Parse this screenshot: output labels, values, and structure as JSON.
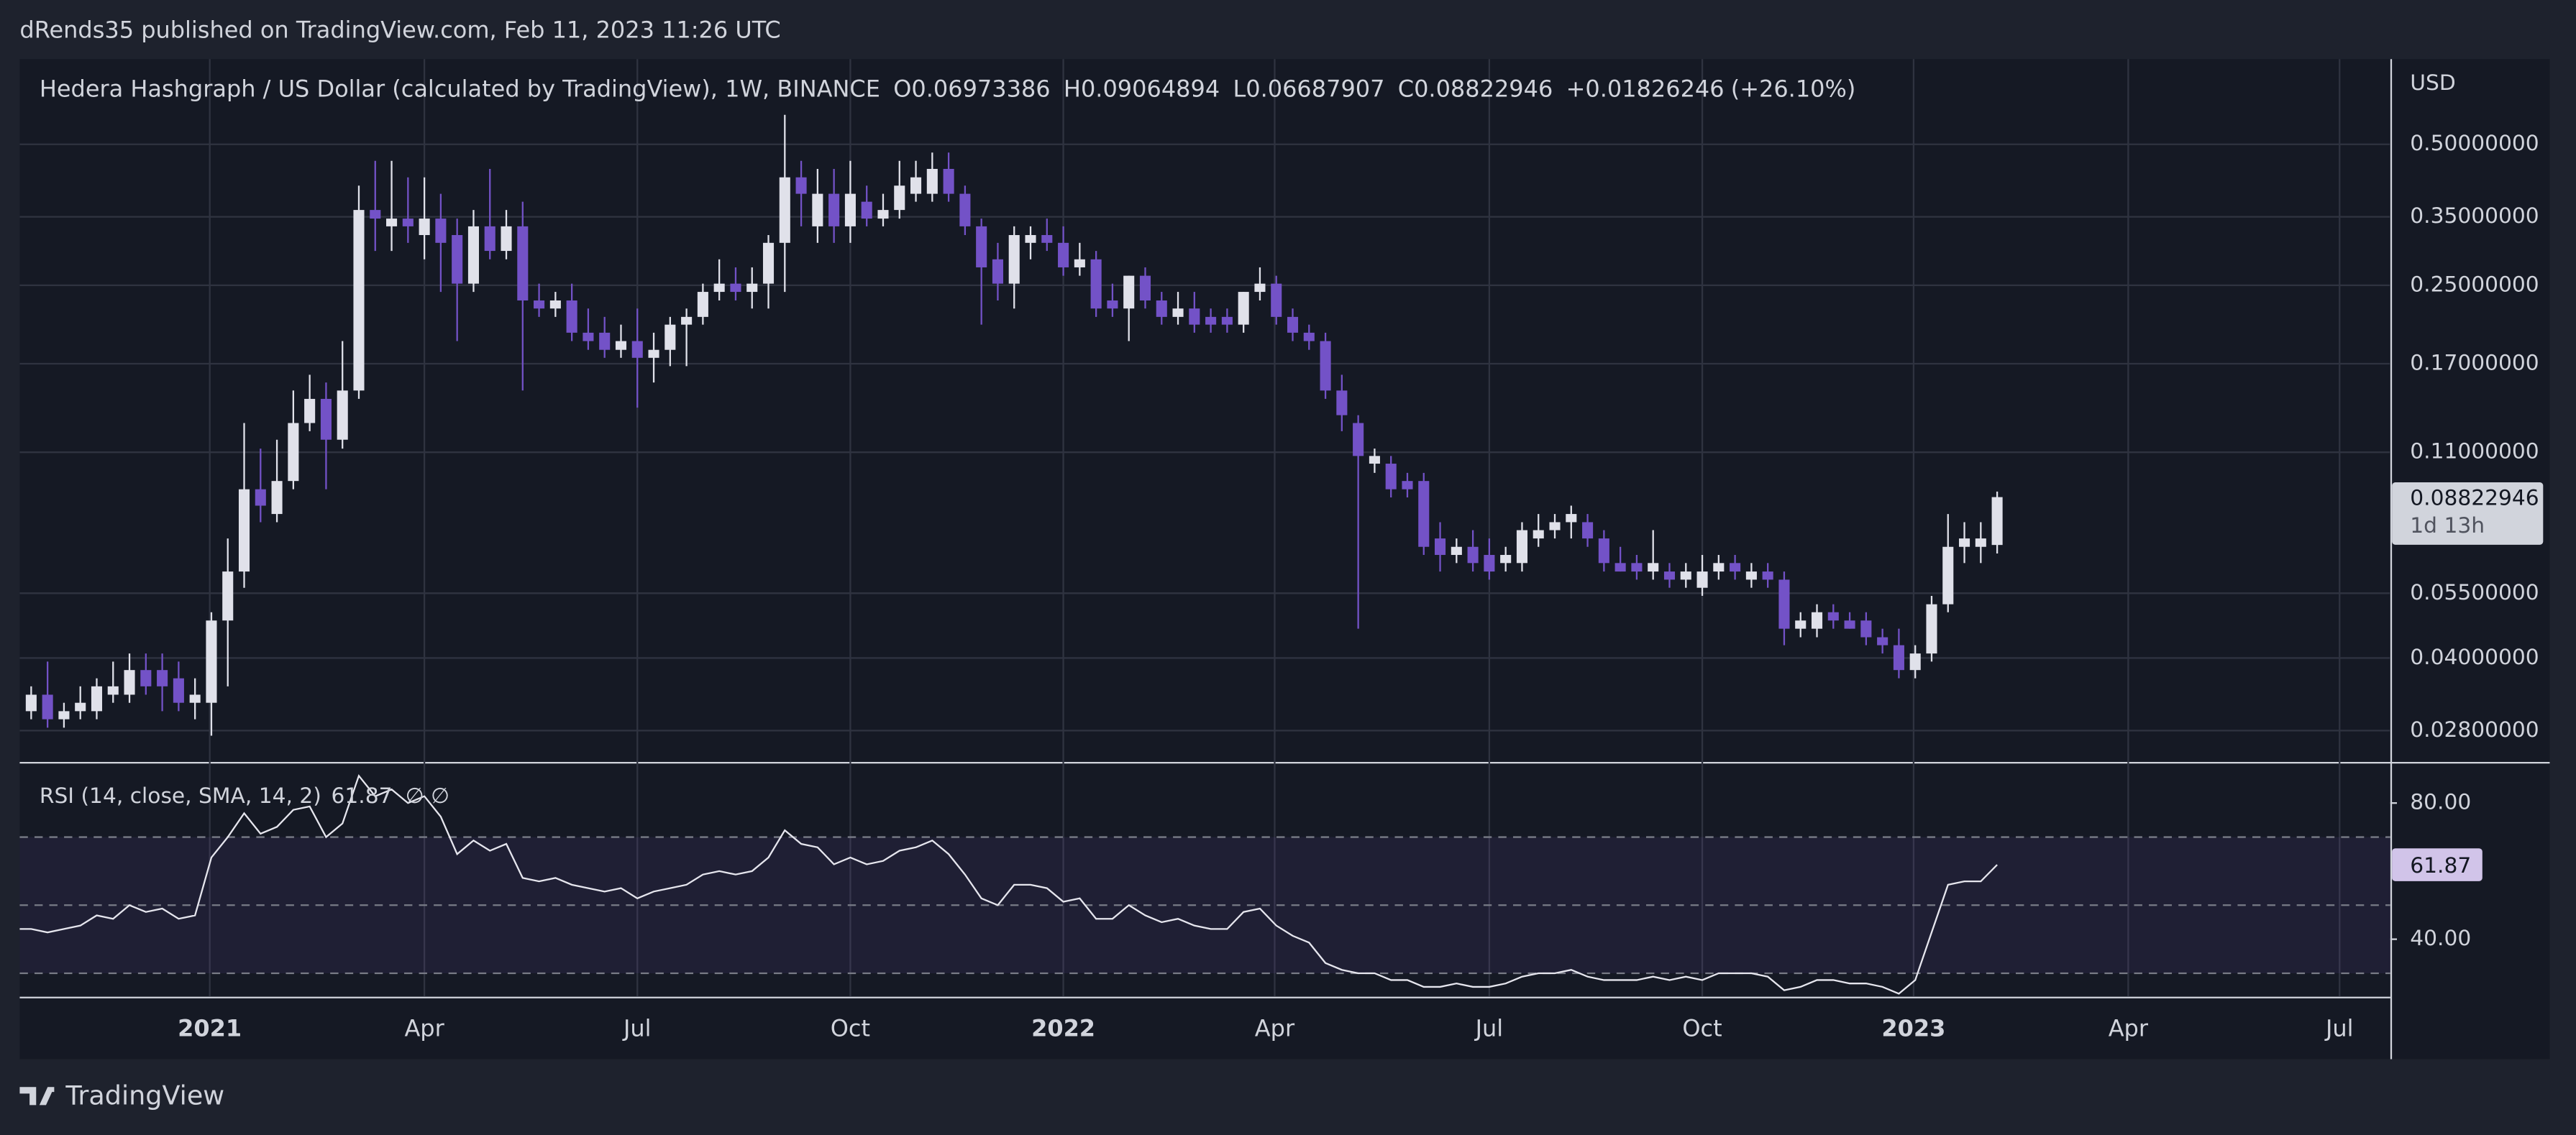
{
  "header": {
    "published": "dRends35 published on TradingView.com, Feb 11, 2023 11:26 UTC",
    "brand": "TradingView"
  },
  "chart_data": [
    {
      "type": "candlestick",
      "title": "Hedera Hashgraph / US Dollar (calculated by TradingView), 1W, BINANCE",
      "ohlc_labels": [
        "O",
        "H",
        "L",
        "C"
      ],
      "change": "+0.01826246",
      "change_pct": "(+26.10%)",
      "currency": "USD",
      "countdown": "1d 13h",
      "up_color": "#e0e1ea",
      "down_color": "#7352c7",
      "log_scale": true,
      "grid": true,
      "ylim": [
        0.024,
        0.76
      ],
      "yticks": [
        {
          "value": 0.5,
          "label": "0.50000000"
        },
        {
          "value": 0.35,
          "label": "0.35000000"
        },
        {
          "value": 0.25,
          "label": "0.25000000"
        },
        {
          "value": 0.17,
          "label": "0.17000000"
        },
        {
          "value": 0.11,
          "label": "0.11000000"
        },
        {
          "value": 0.055,
          "label": "0.05500000"
        },
        {
          "value": 0.04,
          "label": "0.04000000"
        },
        {
          "value": 0.028,
          "label": "0.02800000"
        }
      ],
      "xlim": [
        -0.7,
        144.0
      ],
      "xticks": [
        {
          "value": 10.9,
          "label": "2021"
        },
        {
          "value": 24.0,
          "label": "Apr"
        },
        {
          "value": 37.0,
          "label": "Jul"
        },
        {
          "value": 50.0,
          "label": "Oct"
        },
        {
          "value": 63.0,
          "label": "2022"
        },
        {
          "value": 75.9,
          "label": "Apr"
        },
        {
          "value": 89.0,
          "label": "Jul"
        },
        {
          "value": 102.0,
          "label": "Oct"
        },
        {
          "value": 114.9,
          "label": "2023"
        },
        {
          "value": 128.0,
          "label": "Apr"
        },
        {
          "value": 140.9,
          "label": "Jul"
        }
      ],
      "candles": [
        {
          "open": 0.0308,
          "high": 0.0348,
          "low": 0.0296,
          "close": 0.0334
        },
        {
          "open": 0.0334,
          "high": 0.0393,
          "low": 0.0284,
          "close": 0.0296
        },
        {
          "open": 0.0296,
          "high": 0.0321,
          "low": 0.0284,
          "close": 0.0308
        },
        {
          "open": 0.0308,
          "high": 0.0348,
          "low": 0.0296,
          "close": 0.0321
        },
        {
          "open": 0.0308,
          "high": 0.0362,
          "low": 0.0296,
          "close": 0.0348
        },
        {
          "open": 0.0334,
          "high": 0.0393,
          "low": 0.0321,
          "close": 0.0348
        },
        {
          "open": 0.0334,
          "high": 0.0409,
          "low": 0.0321,
          "close": 0.0377
        },
        {
          "open": 0.0377,
          "high": 0.0409,
          "low": 0.0334,
          "close": 0.0348
        },
        {
          "open": 0.0377,
          "high": 0.0409,
          "low": 0.0308,
          "close": 0.0348
        },
        {
          "open": 0.0362,
          "high": 0.0393,
          "low": 0.0308,
          "close": 0.0321
        },
        {
          "open": 0.0321,
          "high": 0.0362,
          "low": 0.0296,
          "close": 0.0334
        },
        {
          "open": 0.0321,
          "high": 0.0501,
          "low": 0.0273,
          "close": 0.0481
        },
        {
          "open": 0.0481,
          "high": 0.072,
          "low": 0.0348,
          "close": 0.0612
        },
        {
          "open": 0.0612,
          "high": 0.127,
          "low": 0.0565,
          "close": 0.0917
        },
        {
          "open": 0.0917,
          "high": 0.112,
          "low": 0.078,
          "close": 0.0846
        },
        {
          "open": 0.0812,
          "high": 0.117,
          "low": 0.078,
          "close": 0.0955
        },
        {
          "open": 0.0955,
          "high": 0.149,
          "low": 0.0917,
          "close": 0.127
        },
        {
          "open": 0.127,
          "high": 0.161,
          "low": 0.122,
          "close": 0.143
        },
        {
          "open": 0.143,
          "high": 0.155,
          "low": 0.0917,
          "close": 0.117
        },
        {
          "open": 0.117,
          "high": 0.19,
          "low": 0.112,
          "close": 0.149
        },
        {
          "open": 0.149,
          "high": 0.408,
          "low": 0.143,
          "close": 0.362
        },
        {
          "open": 0.362,
          "high": 0.461,
          "low": 0.296,
          "close": 0.347
        },
        {
          "open": 0.334,
          "high": 0.461,
          "low": 0.296,
          "close": 0.347
        },
        {
          "open": 0.347,
          "high": 0.425,
          "low": 0.308,
          "close": 0.334
        },
        {
          "open": 0.32,
          "high": 0.425,
          "low": 0.284,
          "close": 0.347
        },
        {
          "open": 0.347,
          "high": 0.392,
          "low": 0.242,
          "close": 0.308
        },
        {
          "open": 0.32,
          "high": 0.347,
          "low": 0.19,
          "close": 0.252
        },
        {
          "open": 0.252,
          "high": 0.362,
          "low": 0.242,
          "close": 0.334
        },
        {
          "open": 0.334,
          "high": 0.443,
          "low": 0.284,
          "close": 0.296
        },
        {
          "open": 0.296,
          "high": 0.362,
          "low": 0.284,
          "close": 0.334
        },
        {
          "open": 0.334,
          "high": 0.377,
          "low": 0.149,
          "close": 0.232
        },
        {
          "open": 0.232,
          "high": 0.252,
          "low": 0.214,
          "close": 0.223
        },
        {
          "open": 0.223,
          "high": 0.242,
          "low": 0.214,
          "close": 0.232
        },
        {
          "open": 0.232,
          "high": 0.252,
          "low": 0.19,
          "close": 0.198
        },
        {
          "open": 0.198,
          "high": 0.223,
          "low": 0.182,
          "close": 0.19
        },
        {
          "open": 0.198,
          "high": 0.214,
          "low": 0.175,
          "close": 0.182
        },
        {
          "open": 0.182,
          "high": 0.206,
          "low": 0.175,
          "close": 0.19
        },
        {
          "open": 0.19,
          "high": 0.223,
          "low": 0.137,
          "close": 0.175
        },
        {
          "open": 0.175,
          "high": 0.198,
          "low": 0.155,
          "close": 0.182
        },
        {
          "open": 0.182,
          "high": 0.214,
          "low": 0.168,
          "close": 0.206
        },
        {
          "open": 0.206,
          "high": 0.223,
          "low": 0.168,
          "close": 0.214
        },
        {
          "open": 0.214,
          "high": 0.252,
          "low": 0.206,
          "close": 0.242
        },
        {
          "open": 0.242,
          "high": 0.284,
          "low": 0.232,
          "close": 0.252
        },
        {
          "open": 0.252,
          "high": 0.273,
          "low": 0.232,
          "close": 0.242
        },
        {
          "open": 0.242,
          "high": 0.273,
          "low": 0.223,
          "close": 0.252
        },
        {
          "open": 0.252,
          "high": 0.32,
          "low": 0.223,
          "close": 0.308
        },
        {
          "open": 0.308,
          "high": 0.578,
          "low": 0.242,
          "close": 0.425
        },
        {
          "open": 0.425,
          "high": 0.461,
          "low": 0.334,
          "close": 0.392
        },
        {
          "open": 0.334,
          "high": 0.443,
          "low": 0.308,
          "close": 0.392
        },
        {
          "open": 0.392,
          "high": 0.443,
          "low": 0.308,
          "close": 0.334
        },
        {
          "open": 0.334,
          "high": 0.461,
          "low": 0.308,
          "close": 0.392
        },
        {
          "open": 0.377,
          "high": 0.408,
          "low": 0.334,
          "close": 0.347
        },
        {
          "open": 0.347,
          "high": 0.392,
          "low": 0.334,
          "close": 0.362
        },
        {
          "open": 0.362,
          "high": 0.461,
          "low": 0.347,
          "close": 0.408
        },
        {
          "open": 0.392,
          "high": 0.461,
          "low": 0.377,
          "close": 0.425
        },
        {
          "open": 0.392,
          "high": 0.48,
          "low": 0.377,
          "close": 0.443
        },
        {
          "open": 0.443,
          "high": 0.48,
          "low": 0.377,
          "close": 0.392
        },
        {
          "open": 0.392,
          "high": 0.408,
          "low": 0.32,
          "close": 0.334
        },
        {
          "open": 0.334,
          "high": 0.347,
          "low": 0.206,
          "close": 0.273
        },
        {
          "open": 0.284,
          "high": 0.308,
          "low": 0.232,
          "close": 0.252
        },
        {
          "open": 0.252,
          "high": 0.334,
          "low": 0.223,
          "close": 0.32
        },
        {
          "open": 0.308,
          "high": 0.334,
          "low": 0.284,
          "close": 0.32
        },
        {
          "open": 0.32,
          "high": 0.347,
          "low": 0.296,
          "close": 0.308
        },
        {
          "open": 0.308,
          "high": 0.334,
          "low": 0.262,
          "close": 0.273
        },
        {
          "open": 0.273,
          "high": 0.308,
          "low": 0.262,
          "close": 0.284
        },
        {
          "open": 0.284,
          "high": 0.296,
          "low": 0.214,
          "close": 0.223
        },
        {
          "open": 0.232,
          "high": 0.252,
          "low": 0.214,
          "close": 0.223
        },
        {
          "open": 0.223,
          "high": 0.262,
          "low": 0.19,
          "close": 0.262
        },
        {
          "open": 0.262,
          "high": 0.273,
          "low": 0.223,
          "close": 0.232
        },
        {
          "open": 0.232,
          "high": 0.242,
          "low": 0.206,
          "close": 0.214
        },
        {
          "open": 0.214,
          "high": 0.242,
          "low": 0.206,
          "close": 0.223
        },
        {
          "open": 0.223,
          "high": 0.242,
          "low": 0.198,
          "close": 0.206
        },
        {
          "open": 0.214,
          "high": 0.223,
          "low": 0.198,
          "close": 0.206
        },
        {
          "open": 0.214,
          "high": 0.223,
          "low": 0.198,
          "close": 0.206
        },
        {
          "open": 0.206,
          "high": 0.242,
          "low": 0.198,
          "close": 0.242
        },
        {
          "open": 0.242,
          "high": 0.273,
          "low": 0.232,
          "close": 0.252
        },
        {
          "open": 0.252,
          "high": 0.262,
          "low": 0.206,
          "close": 0.214
        },
        {
          "open": 0.214,
          "high": 0.223,
          "low": 0.19,
          "close": 0.198
        },
        {
          "open": 0.198,
          "high": 0.206,
          "low": 0.182,
          "close": 0.19
        },
        {
          "open": 0.19,
          "high": 0.198,
          "low": 0.143,
          "close": 0.149
        },
        {
          "open": 0.149,
          "high": 0.161,
          "low": 0.122,
          "close": 0.132
        },
        {
          "open": 0.127,
          "high": 0.132,
          "low": 0.0462,
          "close": 0.108
        },
        {
          "open": 0.104,
          "high": 0.112,
          "low": 0.0994,
          "close": 0.108
        },
        {
          "open": 0.104,
          "high": 0.108,
          "low": 0.0881,
          "close": 0.0917
        },
        {
          "open": 0.0955,
          "high": 0.0994,
          "low": 0.0881,
          "close": 0.0917
        },
        {
          "open": 0.0955,
          "high": 0.0994,
          "low": 0.0664,
          "close": 0.0691
        },
        {
          "open": 0.072,
          "high": 0.078,
          "low": 0.0612,
          "close": 0.0664
        },
        {
          "open": 0.0664,
          "high": 0.072,
          "low": 0.0638,
          "close": 0.0691
        },
        {
          "open": 0.0691,
          "high": 0.075,
          "low": 0.0612,
          "close": 0.0638
        },
        {
          "open": 0.0664,
          "high": 0.072,
          "low": 0.0588,
          "close": 0.0612
        },
        {
          "open": 0.0638,
          "high": 0.0691,
          "low": 0.0612,
          "close": 0.0664
        },
        {
          "open": 0.0638,
          "high": 0.078,
          "low": 0.0612,
          "close": 0.075
        },
        {
          "open": 0.072,
          "high": 0.0812,
          "low": 0.0691,
          "close": 0.075
        },
        {
          "open": 0.075,
          "high": 0.0812,
          "low": 0.072,
          "close": 0.078
        },
        {
          "open": 0.078,
          "high": 0.0846,
          "low": 0.072,
          "close": 0.0812
        },
        {
          "open": 0.078,
          "high": 0.0812,
          "low": 0.0691,
          "close": 0.072
        },
        {
          "open": 0.072,
          "high": 0.075,
          "low": 0.0612,
          "close": 0.0638
        },
        {
          "open": 0.0638,
          "high": 0.0691,
          "low": 0.0612,
          "close": 0.0612
        },
        {
          "open": 0.0638,
          "high": 0.0664,
          "low": 0.0588,
          "close": 0.0612
        },
        {
          "open": 0.0612,
          "high": 0.075,
          "low": 0.0588,
          "close": 0.0638
        },
        {
          "open": 0.0612,
          "high": 0.0638,
          "low": 0.0565,
          "close": 0.0588
        },
        {
          "open": 0.0588,
          "high": 0.0638,
          "low": 0.0565,
          "close": 0.0612
        },
        {
          "open": 0.0565,
          "high": 0.0664,
          "low": 0.0543,
          "close": 0.0612
        },
        {
          "open": 0.0612,
          "high": 0.0664,
          "low": 0.0588,
          "close": 0.0638
        },
        {
          "open": 0.0638,
          "high": 0.0664,
          "low": 0.0588,
          "close": 0.0612
        },
        {
          "open": 0.0588,
          "high": 0.0638,
          "low": 0.0565,
          "close": 0.0612
        },
        {
          "open": 0.0612,
          "high": 0.0638,
          "low": 0.0565,
          "close": 0.0588
        },
        {
          "open": 0.0588,
          "high": 0.0612,
          "low": 0.0426,
          "close": 0.0462
        },
        {
          "open": 0.0462,
          "high": 0.0501,
          "low": 0.0443,
          "close": 0.0481
        },
        {
          "open": 0.0462,
          "high": 0.0521,
          "low": 0.0443,
          "close": 0.0501
        },
        {
          "open": 0.0501,
          "high": 0.0521,
          "low": 0.0462,
          "close": 0.0481
        },
        {
          "open": 0.0481,
          "high": 0.0501,
          "low": 0.0462,
          "close": 0.0462
        },
        {
          "open": 0.0481,
          "high": 0.0501,
          "low": 0.0426,
          "close": 0.0443
        },
        {
          "open": 0.0443,
          "high": 0.0462,
          "low": 0.0409,
          "close": 0.0426
        },
        {
          "open": 0.0426,
          "high": 0.0462,
          "low": 0.0362,
          "close": 0.0377
        },
        {
          "open": 0.0377,
          "high": 0.0426,
          "low": 0.0362,
          "close": 0.0409
        },
        {
          "open": 0.0409,
          "high": 0.0543,
          "low": 0.0393,
          "close": 0.0521
        },
        {
          "open": 0.0521,
          "high": 0.0812,
          "low": 0.0501,
          "close": 0.0691
        },
        {
          "open": 0.0691,
          "high": 0.078,
          "low": 0.0638,
          "close": 0.072
        },
        {
          "open": 0.0691,
          "high": 0.078,
          "low": 0.0638,
          "close": 0.072
        },
        {
          "open": 0.06973386,
          "high": 0.09064894,
          "low": 0.06687907,
          "close": 0.08822946
        }
      ]
    },
    {
      "type": "line",
      "title": "RSI (14, close, SMA, 14, 2)",
      "extra": "∅  ∅",
      "color": "#e6e6ee",
      "label_color": "#d1c4e9",
      "ylim": [
        23.1,
        91.6
      ],
      "yticks": [
        {
          "value": 80,
          "label": "80.00"
        },
        {
          "value": 40,
          "label": "40.00"
        }
      ],
      "levels": [
        70,
        50,
        30
      ],
      "level_fill": "#7e57c2",
      "values": [
        43,
        42,
        43,
        44,
        47,
        46,
        50,
        48,
        49,
        46,
        47,
        64,
        70,
        77,
        71,
        73,
        78,
        79,
        70,
        74,
        88,
        82,
        84,
        80,
        82,
        76,
        65,
        69,
        66,
        68,
        58,
        57,
        58,
        56,
        55,
        54,
        55,
        52,
        54,
        55,
        56,
        59,
        60,
        59,
        60,
        64,
        72,
        68,
        67,
        62,
        64,
        62,
        63,
        66,
        67,
        69,
        65,
        59,
        52,
        50,
        56,
        56,
        55,
        51,
        52,
        46,
        46,
        50,
        47,
        45,
        46,
        44,
        43,
        43,
        48,
        49,
        44,
        41,
        39,
        33,
        31,
        30,
        30,
        28,
        28,
        26,
        26,
        27,
        26,
        26,
        27,
        29,
        30,
        30,
        31,
        29,
        28,
        28,
        28,
        29,
        28,
        29,
        28,
        30,
        30,
        30,
        29,
        25,
        26,
        28,
        28,
        27,
        27,
        26,
        24,
        28,
        42,
        56,
        57,
        57,
        61.87
      ]
    }
  ]
}
